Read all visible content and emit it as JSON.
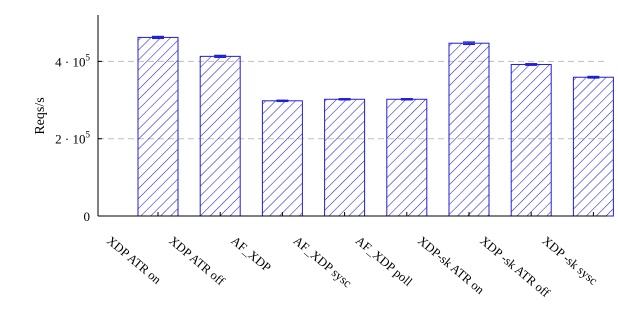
{
  "chart_data": {
    "type": "bar",
    "categories": [
      "XDP ATR on",
      "XDP ATR off",
      "AF_XDP",
      "AF_XDP sysc",
      "AF_XDP poll",
      "XDP-sk ATR on",
      "XDP -sk ATR off",
      "XDP -sk sysc"
    ],
    "values": [
      462000,
      413000,
      298000,
      302000,
      302000,
      447000,
      392000,
      359000
    ],
    "errors": [
      2500,
      2500,
      1500,
      1500,
      1500,
      3000,
      2000,
      2000
    ],
    "ylabel": "Reqs/s",
    "xlabel": "",
    "ylim": [
      0,
      520000
    ],
    "yticks": [
      {
        "value": 0,
        "mantissa": "0",
        "exponent": ""
      },
      {
        "value": 200000,
        "mantissa": "2 · 10",
        "exponent": "5"
      },
      {
        "value": 400000,
        "mantissa": "4 · 10",
        "exponent": "5"
      }
    ],
    "grid": true,
    "legend": "none",
    "bar_fill": "hatched",
    "colors": {
      "bar": "#1f1fd6",
      "grid": "#bfbfbf",
      "axis": "#000000"
    }
  }
}
